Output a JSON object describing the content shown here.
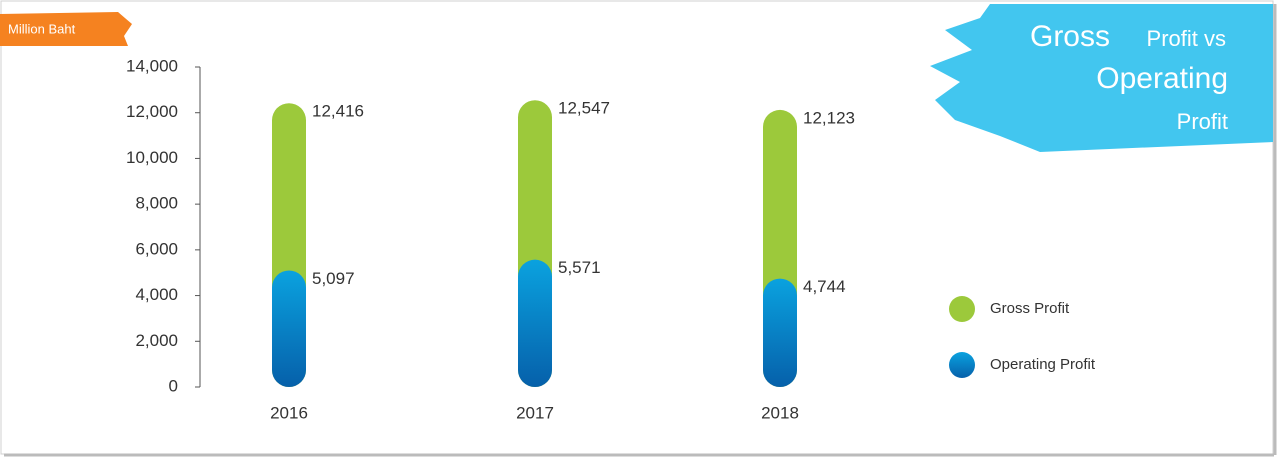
{
  "chart_data": {
    "type": "bar",
    "overlap": true,
    "title": [
      "Gross",
      "Profit vs",
      "Operating",
      "Profit"
    ],
    "unit_label": "Million Baht",
    "categories": [
      "2016",
      "2017",
      "2018"
    ],
    "series": [
      {
        "name": "Gross Profit",
        "color": "#9cc93b",
        "values": [
          12416,
          12547,
          12123
        ],
        "value_labels": [
          "12,416",
          "12,547",
          "12,123"
        ]
      },
      {
        "name": "Operating Profit",
        "color": "#0aa2df",
        "values": [
          5097,
          5571,
          4744
        ],
        "value_labels": [
          "5,097",
          "5,571",
          "4,744"
        ]
      }
    ],
    "ylim": [
      0,
      14000
    ],
    "yticks": [
      0,
      {
        "value": 2000,
        "label": "2,000"
      },
      {
        "value": 4000,
        "label": "4,000"
      },
      {
        "value": 6000,
        "label": "6,000"
      },
      {
        "value": 8000,
        "label": "8,000"
      },
      {
        "value": 10000,
        "label": "10,000"
      },
      {
        "value": 12000,
        "label": "12,000"
      },
      {
        "value": 14000,
        "label": "14,000"
      }
    ],
    "grid": false,
    "legend": "right"
  }
}
